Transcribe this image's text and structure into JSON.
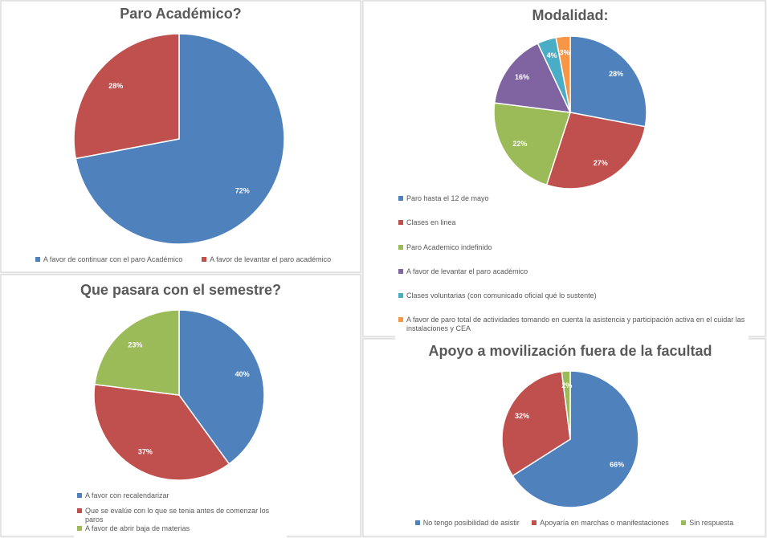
{
  "chart_data": [
    {
      "type": "pie",
      "title": "Paro Académico?",
      "categories": [
        "A favor de continuar con el paro Académico",
        "A favor de levantar el paro académico"
      ],
      "values": [
        72,
        28
      ],
      "value_labels": [
        "72%",
        "28%"
      ],
      "colors": [
        "#4f81bd",
        "#c0504d"
      ]
    },
    {
      "type": "pie",
      "title": "Modalidad:",
      "categories": [
        "Paro hasta el 12 de mayo",
        "Clases en linea",
        "Paro Academico indefinido",
        "A favor de levantar el paro académico",
        "Clases voluntarias (con comunicado oficial qué lo sustente)",
        "A favor de paro total de actividades tomando en cuenta la asistencia y participación activa en el cuidar las instalaciones y CEA"
      ],
      "values": [
        28,
        27,
        22,
        16,
        4,
        3
      ],
      "value_labels": [
        "28%",
        "27%",
        "22%",
        "16%",
        "4%",
        "3%"
      ],
      "colors": [
        "#4f81bd",
        "#c0504d",
        "#9bbb59",
        "#8064a2",
        "#4bacc6",
        "#f79646"
      ]
    },
    {
      "type": "pie",
      "title": "Que pasara con el semestre?",
      "categories": [
        "A favor con recalendarizar",
        "Que se evalúe con lo que se tenia antes de comenzar los paros",
        "A favor de abrir baja de materias"
      ],
      "values": [
        40,
        37,
        23
      ],
      "value_labels": [
        "40%",
        "37%",
        "23%"
      ],
      "colors": [
        "#4f81bd",
        "#c0504d",
        "#9bbb59"
      ]
    },
    {
      "type": "pie",
      "title": "Apoyo a movilización fuera de la facultad",
      "categories": [
        "No tengo posibilidad de asistir",
        "Apoyaría en marchas o manifestaciones",
        "Sin respuesta"
      ],
      "values": [
        66,
        32,
        2
      ],
      "value_labels": [
        "66%",
        "32%",
        "2%"
      ],
      "colors": [
        "#4f81bd",
        "#c0504d",
        "#9bbb59"
      ]
    }
  ]
}
